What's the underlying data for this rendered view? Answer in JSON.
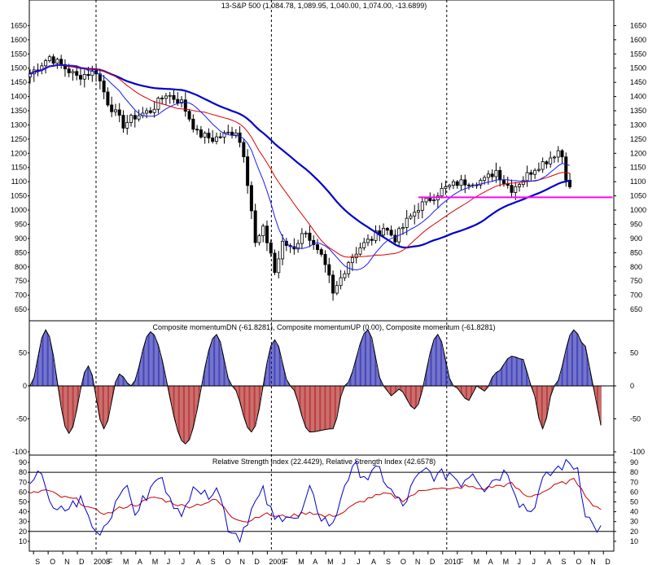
{
  "chart_data": [
    {
      "type": "candlestick",
      "title": "13-S&P 500 (1,084.78, 1,089.95, 1,040.00, 1,074.00, -13.6899)",
      "ylim": [
        610,
        1700
      ],
      "y_ticks": [
        650,
        700,
        750,
        800,
        850,
        900,
        950,
        1000,
        1050,
        1100,
        1150,
        1200,
        1250,
        1300,
        1350,
        1400,
        1450,
        1500,
        1550,
        1600,
        1650
      ],
      "x_month_labels": [
        "S",
        "O",
        "N",
        "D",
        "2008",
        "F",
        "M",
        "A",
        "M",
        "J",
        "J",
        "A",
        "S",
        "O",
        "N",
        "D",
        "2009",
        "F",
        "M",
        "A",
        "M",
        "J",
        "J",
        "A",
        "S",
        "O",
        "N",
        "D",
        "2010",
        "F",
        "M",
        "A",
        "M",
        "J",
        "J",
        "A",
        "S",
        "O",
        "N",
        "D"
      ],
      "year_boundaries": [
        "2008",
        "2009",
        "2010"
      ],
      "candle_count": 140,
      "close_key_points": [
        {
          "week": 0,
          "value": 1480
        },
        {
          "week": 5,
          "value": 1540
        },
        {
          "week": 9,
          "value": 1500
        },
        {
          "week": 12,
          "value": 1470
        },
        {
          "week": 17,
          "value": 1490
        },
        {
          "week": 20,
          "value": 1380
        },
        {
          "week": 24,
          "value": 1300
        },
        {
          "week": 27,
          "value": 1330
        },
        {
          "week": 31,
          "value": 1350
        },
        {
          "week": 35,
          "value": 1410
        },
        {
          "week": 39,
          "value": 1380
        },
        {
          "week": 43,
          "value": 1270
        },
        {
          "week": 47,
          "value": 1250
        },
        {
          "week": 51,
          "value": 1270
        },
        {
          "week": 53,
          "value": 1280
        },
        {
          "week": 55,
          "value": 1200
        },
        {
          "week": 57,
          "value": 1000
        },
        {
          "week": 58,
          "value": 880
        },
        {
          "week": 60,
          "value": 930
        },
        {
          "week": 62,
          "value": 850
        },
        {
          "week": 63,
          "value": 780
        },
        {
          "week": 65,
          "value": 880
        },
        {
          "week": 68,
          "value": 870
        },
        {
          "week": 71,
          "value": 930
        },
        {
          "week": 73,
          "value": 870
        },
        {
          "week": 75,
          "value": 830
        },
        {
          "week": 77,
          "value": 760
        },
        {
          "week": 78,
          "value": 700
        },
        {
          "week": 80,
          "value": 760
        },
        {
          "week": 82,
          "value": 820
        },
        {
          "week": 85,
          "value": 870
        },
        {
          "week": 88,
          "value": 900
        },
        {
          "week": 91,
          "value": 940
        },
        {
          "week": 94,
          "value": 900
        },
        {
          "week": 97,
          "value": 960
        },
        {
          "week": 100,
          "value": 1010
        },
        {
          "week": 103,
          "value": 1040
        },
        {
          "week": 106,
          "value": 1070
        },
        {
          "week": 110,
          "value": 1095
        },
        {
          "week": 113,
          "value": 1100
        },
        {
          "week": 117,
          "value": 1105
        },
        {
          "week": 120,
          "value": 1140
        },
        {
          "week": 122,
          "value": 1100
        },
        {
          "week": 124,
          "value": 1075
        },
        {
          "week": 127,
          "value": 1110
        },
        {
          "week": 130,
          "value": 1150
        },
        {
          "week": 133,
          "value": 1175
        },
        {
          "week": 136,
          "value": 1210
        },
        {
          "week": 137,
          "value": 1190
        },
        {
          "week": 138,
          "value": 1120
        },
        {
          "week": 139,
          "value": 1074
        }
      ],
      "support_line": {
        "value": 1045,
        "from_week": 100,
        "to_week": 150,
        "color": "#ff00ff"
      },
      "colors": {
        "candles": "#000000",
        "ma_fast": "#1a1aff",
        "ma_mid": "#dd0000",
        "ma_slow": "#0000cc",
        "vline": "#000000"
      }
    },
    {
      "type": "bar",
      "title": "Composite momentumDN (-61.8281), Composite momentumUP (0.00), Composite momentum (-61.8281)",
      "ylim": [
        -105,
        95
      ],
      "y_ticks": [
        -100,
        -50,
        0,
        50
      ],
      "extrema": [
        {
          "week": 0,
          "value": 0
        },
        {
          "week": 4,
          "value": 85
        },
        {
          "week": 10,
          "value": -72
        },
        {
          "week": 15,
          "value": 30
        },
        {
          "week": 19,
          "value": -65
        },
        {
          "week": 23,
          "value": 18
        },
        {
          "week": 26,
          "value": 0
        },
        {
          "week": 31,
          "value": 82
        },
        {
          "week": 40,
          "value": -88
        },
        {
          "week": 48,
          "value": 78
        },
        {
          "week": 52,
          "value": 0
        },
        {
          "week": 57,
          "value": -70
        },
        {
          "week": 63,
          "value": 70
        },
        {
          "week": 67,
          "value": 0
        },
        {
          "week": 72,
          "value": -70
        },
        {
          "week": 78,
          "value": -65
        },
        {
          "week": 81,
          "value": 0
        },
        {
          "week": 87,
          "value": 85
        },
        {
          "week": 91,
          "value": 0
        },
        {
          "week": 93,
          "value": -15
        },
        {
          "week": 95,
          "value": -5
        },
        {
          "week": 99,
          "value": -35
        },
        {
          "week": 105,
          "value": 78
        },
        {
          "week": 109,
          "value": 0
        },
        {
          "week": 113,
          "value": -22
        },
        {
          "week": 115,
          "value": 0
        },
        {
          "week": 117,
          "value": -8
        },
        {
          "week": 120,
          "value": 20
        },
        {
          "week": 124,
          "value": 45
        },
        {
          "week": 127,
          "value": 40
        },
        {
          "week": 129,
          "value": 0
        },
        {
          "week": 132,
          "value": -65
        },
        {
          "week": 135,
          "value": 0
        },
        {
          "week": 140,
          "value": 85
        },
        {
          "week": 143,
          "value": 60
        },
        {
          "week": 145,
          "value": 0
        },
        {
          "week": 147,
          "value": -60
        }
      ],
      "colors": {
        "up": "#1a1aaa",
        "down": "#aa1111",
        "line": "#000000"
      }
    },
    {
      "type": "line",
      "title": "Relative Strength Index (22.4429), Relative Strength Index (42.6578)",
      "ylim": [
        0,
        95
      ],
      "y_ticks": [
        10,
        20,
        30,
        40,
        50,
        60,
        70,
        80,
        90
      ],
      "hlines": [
        20,
        80
      ],
      "series": [
        {
          "name": "Relative Strength Index (22.4429)",
          "color": "#0000cc",
          "key_points": [
            {
              "week": 0,
              "value": 62
            },
            {
              "week": 3,
              "value": 82
            },
            {
              "week": 6,
              "value": 38
            },
            {
              "week": 9,
              "value": 42
            },
            {
              "week": 13,
              "value": 52
            },
            {
              "week": 17,
              "value": 18
            },
            {
              "week": 20,
              "value": 30
            },
            {
              "week": 24,
              "value": 70
            },
            {
              "week": 27,
              "value": 40
            },
            {
              "week": 30,
              "value": 55
            },
            {
              "week": 33,
              "value": 75
            },
            {
              "week": 36,
              "value": 60
            },
            {
              "week": 39,
              "value": 30
            },
            {
              "week": 42,
              "value": 72
            },
            {
              "week": 45,
              "value": 55
            },
            {
              "week": 48,
              "value": 68
            },
            {
              "week": 51,
              "value": 25
            },
            {
              "week": 54,
              "value": 15
            },
            {
              "week": 57,
              "value": 42
            },
            {
              "week": 60,
              "value": 60
            },
            {
              "week": 63,
              "value": 30
            },
            {
              "week": 66,
              "value": 40
            },
            {
              "week": 69,
              "value": 30
            },
            {
              "week": 72,
              "value": 60
            },
            {
              "week": 75,
              "value": 35
            },
            {
              "week": 78,
              "value": 25
            },
            {
              "week": 81,
              "value": 70
            },
            {
              "week": 84,
              "value": 85
            },
            {
              "week": 87,
              "value": 75
            },
            {
              "week": 90,
              "value": 82
            },
            {
              "week": 93,
              "value": 60
            },
            {
              "week": 96,
              "value": 45
            },
            {
              "week": 99,
              "value": 70
            },
            {
              "week": 102,
              "value": 82
            },
            {
              "week": 105,
              "value": 75
            },
            {
              "week": 108,
              "value": 80
            },
            {
              "week": 111,
              "value": 70
            },
            {
              "week": 114,
              "value": 82
            },
            {
              "week": 117,
              "value": 65
            },
            {
              "week": 120,
              "value": 75
            },
            {
              "week": 123,
              "value": 82
            },
            {
              "week": 126,
              "value": 50
            },
            {
              "week": 129,
              "value": 40
            },
            {
              "week": 132,
              "value": 70
            },
            {
              "week": 135,
              "value": 82
            },
            {
              "week": 138,
              "value": 90
            },
            {
              "week": 141,
              "value": 85
            },
            {
              "week": 143,
              "value": 40
            },
            {
              "week": 145,
              "value": 25
            },
            {
              "week": 147,
              "value": 22
            }
          ]
        },
        {
          "name": "Relative Strength Index (42.6578)",
          "color": "#cc0000",
          "key_points": [
            {
              "week": 0,
              "value": 58
            },
            {
              "week": 4,
              "value": 62
            },
            {
              "week": 8,
              "value": 55
            },
            {
              "week": 12,
              "value": 52
            },
            {
              "week": 16,
              "value": 42
            },
            {
              "week": 20,
              "value": 38
            },
            {
              "week": 24,
              "value": 45
            },
            {
              "week": 28,
              "value": 48
            },
            {
              "week": 32,
              "value": 55
            },
            {
              "week": 36,
              "value": 50
            },
            {
              "week": 40,
              "value": 45
            },
            {
              "week": 44,
              "value": 48
            },
            {
              "week": 48,
              "value": 52
            },
            {
              "week": 52,
              "value": 35
            },
            {
              "week": 56,
              "value": 30
            },
            {
              "week": 60,
              "value": 38
            },
            {
              "week": 64,
              "value": 35
            },
            {
              "week": 68,
              "value": 36
            },
            {
              "week": 72,
              "value": 40
            },
            {
              "week": 76,
              "value": 35
            },
            {
              "week": 80,
              "value": 38
            },
            {
              "week": 84,
              "value": 48
            },
            {
              "week": 88,
              "value": 55
            },
            {
              "week": 92,
              "value": 58
            },
            {
              "week": 96,
              "value": 52
            },
            {
              "week": 100,
              "value": 60
            },
            {
              "week": 104,
              "value": 65
            },
            {
              "week": 108,
              "value": 62
            },
            {
              "week": 112,
              "value": 66
            },
            {
              "week": 116,
              "value": 63
            },
            {
              "week": 120,
              "value": 66
            },
            {
              "week": 124,
              "value": 68
            },
            {
              "week": 128,
              "value": 55
            },
            {
              "week": 132,
              "value": 60
            },
            {
              "week": 136,
              "value": 68
            },
            {
              "week": 140,
              "value": 72
            },
            {
              "week": 142,
              "value": 65
            },
            {
              "week": 144,
              "value": 50
            },
            {
              "week": 147,
              "value": 43
            }
          ]
        }
      ]
    }
  ]
}
